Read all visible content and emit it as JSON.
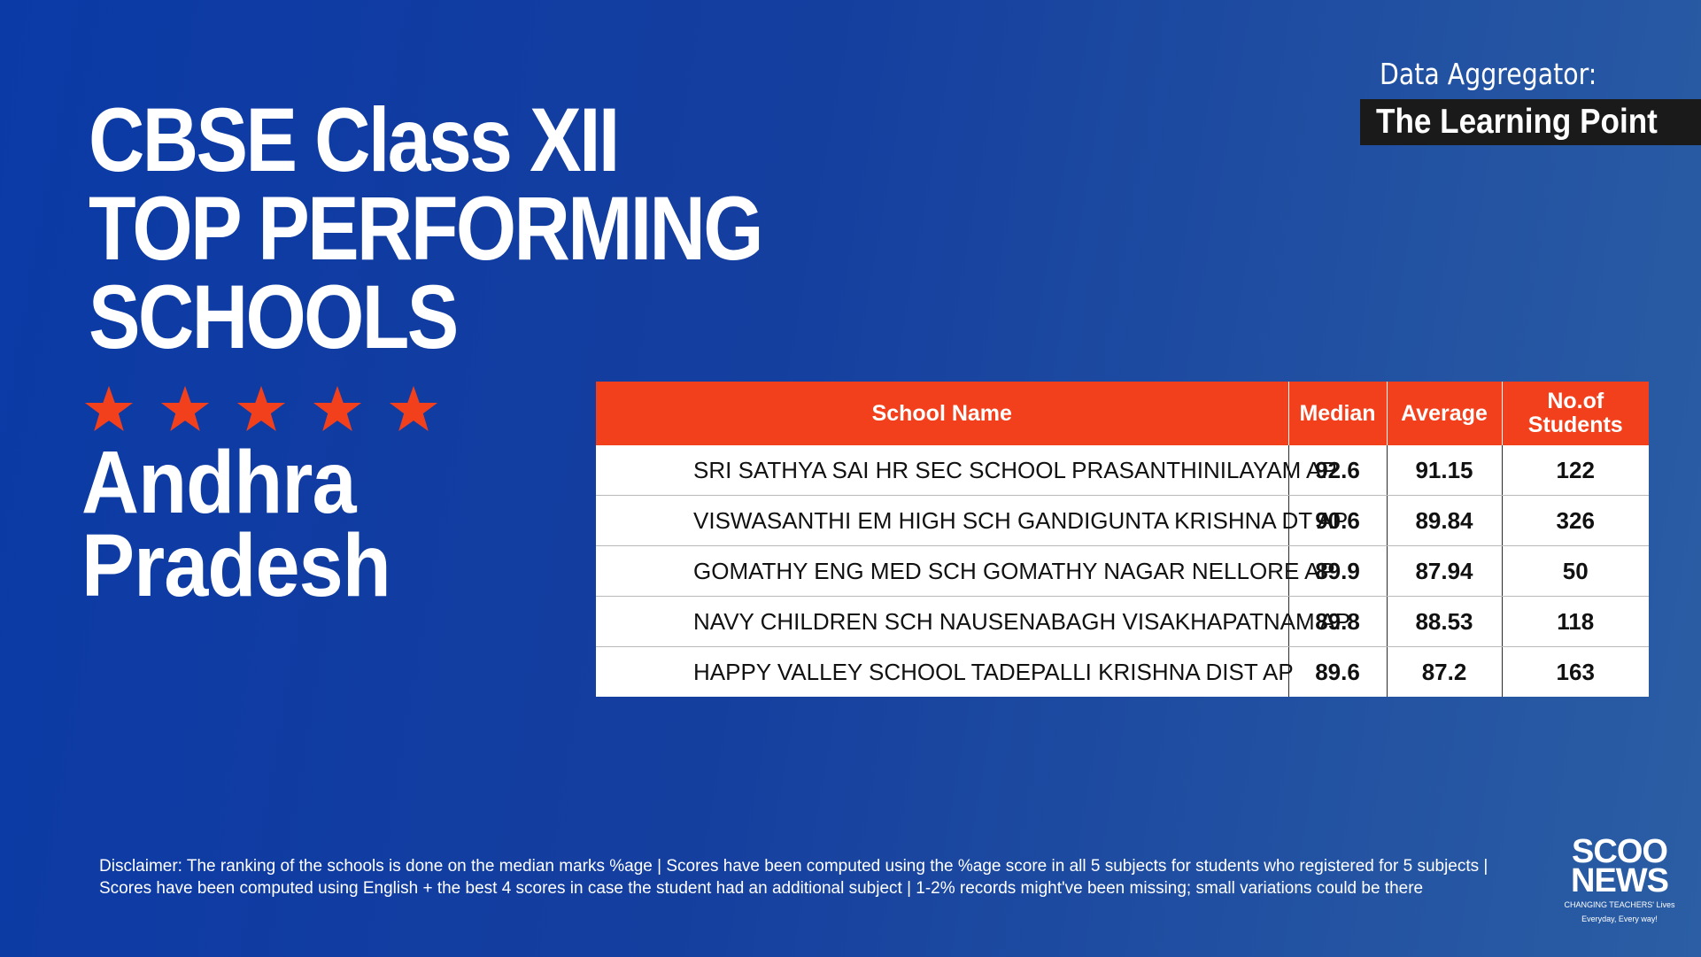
{
  "title": {
    "line1": "CBSE Class XII",
    "line2": "TOP PERFORMING",
    "line3": "SCHOOLS"
  },
  "rating": {
    "stars": 5,
    "icon": "star-icon",
    "color": "#f2401c"
  },
  "state": {
    "line1": "Andhra",
    "line2": "Pradesh"
  },
  "aggregator": {
    "label": "Data Aggregator:",
    "name": "The Learning Point"
  },
  "table": {
    "headers": {
      "school": "School Name",
      "median": "Median",
      "average": "Average",
      "students_line1": "No.of",
      "students_line2": "Students"
    },
    "rows": [
      {
        "school": "SRI SATHYA SAI HR SEC SCHOOL PRASANTHINILAYAM AP",
        "median": "92.6",
        "average": "91.15",
        "students": "122"
      },
      {
        "school": "VISWASANTHI EM HIGH SCH GANDIGUNTA KRISHNA DT AP",
        "median": "90.6",
        "average": "89.84",
        "students": "326"
      },
      {
        "school": "GOMATHY ENG MED SCH GOMATHY NAGAR NELLORE AP",
        "median": "89.9",
        "average": "87.94",
        "students": "50"
      },
      {
        "school": "NAVY CHILDREN SCH NAUSENABAGH VISAKHAPATNAM AP",
        "median": "89.8",
        "average": "88.53",
        "students": "118"
      },
      {
        "school": "HAPPY VALLEY SCHOOL TADEPALLI KRISHNA DIST AP",
        "median": "89.6",
        "average": "87.2",
        "students": "163"
      }
    ]
  },
  "disclaimer": "Disclaimer: The ranking of the schools is done on the median marks %age | Scores have been computed using the %age score in all 5 subjects for students who registered for 5 subjects | Scores have been computed using English + the best 4 scores in case the student had an additional subject | 1-2% records might've been missing; small variations could be there",
  "logo": {
    "line1": "SCOO",
    "line2": "NEWS",
    "tagline1": "CHANGING TEACHERS' Lives",
    "tagline2": "Everyday, Every way!"
  },
  "colors": {
    "accent": "#f2401c",
    "background": "#0b3aa6",
    "aggregator_box": "#1a1a1a"
  }
}
